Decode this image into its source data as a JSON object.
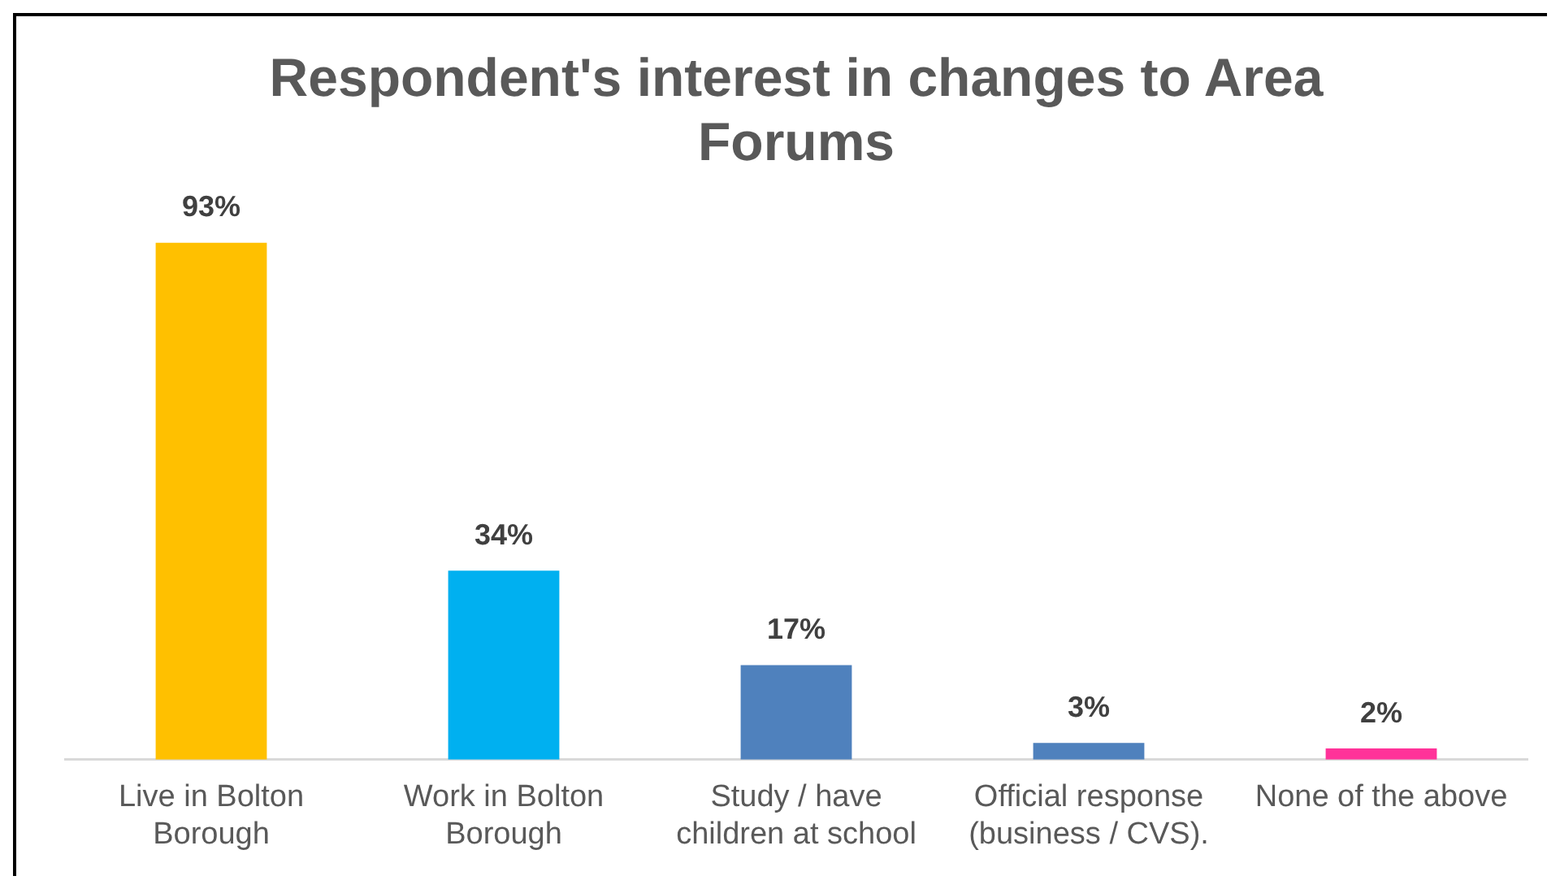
{
  "chart_data": {
    "type": "bar",
    "title": "Respondent's interest in changes to Area Forums",
    "categories": [
      "Live in Bolton Borough",
      "Work in Bolton Borough",
      "Study / have children at school",
      "Official response (business / CVS).",
      "None of the above"
    ],
    "values": [
      93,
      34,
      17,
      3,
      2
    ],
    "colors": [
      "#ffc000",
      "#00b0f0",
      "#4f81bd",
      "#4f81bd",
      "#ff3399"
    ],
    "value_labels": [
      "93%",
      "34%",
      "17%",
      "3%",
      "2%"
    ],
    "grid": false,
    "legend": false
  }
}
